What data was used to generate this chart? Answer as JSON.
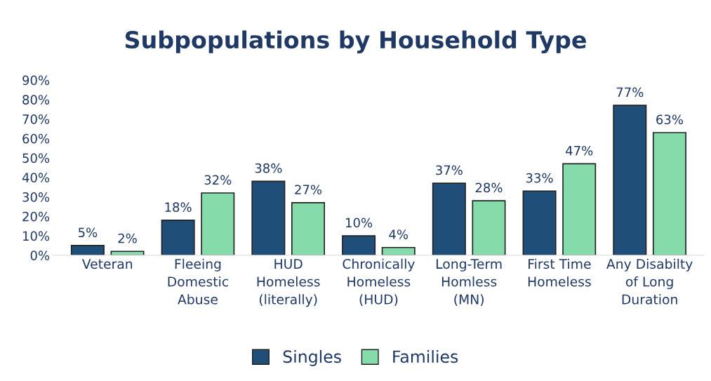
{
  "chart_data": {
    "type": "bar",
    "title": "Subpopulations by Household Type",
    "categories": [
      "Veteran",
      "Fleeing\nDomestic\nAbuse",
      "HUD\nHomeless\n(literally)",
      "Chronically\nHomeless\n(HUD)",
      "Long-Term\nHomless\n(MN)",
      "First Time\nHomeless",
      "Any Disabilty\nof Long\nDuration"
    ],
    "series": [
      {
        "name": "Singles",
        "color": "#1f4e79",
        "values": [
          5,
          18,
          38,
          10,
          37,
          33,
          77
        ],
        "value_labels": [
          "5%",
          "18%",
          "38%",
          "10%",
          "37%",
          "33%",
          "77%"
        ]
      },
      {
        "name": "Families",
        "color": "#86dbab",
        "values": [
          2,
          32,
          27,
          4,
          28,
          47,
          63
        ],
        "value_labels": [
          "2%",
          "32%",
          "27%",
          "4%",
          "28%",
          "47%",
          "63%"
        ]
      }
    ],
    "ylim": [
      0,
      90
    ],
    "yticks": [
      {
        "value": 0,
        "label": "0%"
      },
      {
        "value": 10,
        "label": "10%"
      },
      {
        "value": 20,
        "label": "20%"
      },
      {
        "value": 30,
        "label": "30%"
      },
      {
        "value": 40,
        "label": "40%"
      },
      {
        "value": 50,
        "label": "50%"
      },
      {
        "value": 60,
        "label": "60%"
      },
      {
        "value": 70,
        "label": "70%"
      },
      {
        "value": 80,
        "label": "80%"
      },
      {
        "value": 90,
        "label": "90%"
      }
    ],
    "legend": "bottom"
  }
}
